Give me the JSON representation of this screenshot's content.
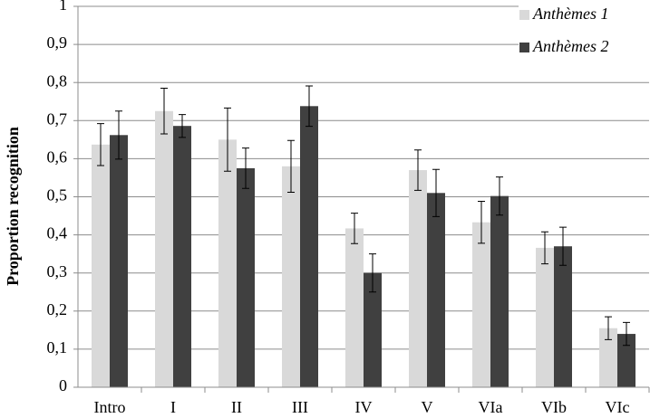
{
  "chart_data": {
    "type": "bar",
    "y_label": "Proportion recognition",
    "categories": [
      "Intro",
      "I",
      "II",
      "III",
      "IV",
      "V",
      "VIa",
      "VIb",
      "VIc"
    ],
    "series": [
      {
        "name": "Anthèmes 1",
        "color": "#d9d9d9",
        "values": [
          0.637,
          0.725,
          0.65,
          0.58,
          0.417,
          0.57,
          0.433,
          0.366,
          0.155
        ],
        "errors": [
          0.055,
          0.06,
          0.083,
          0.068,
          0.04,
          0.053,
          0.055,
          0.042,
          0.03
        ]
      },
      {
        "name": "Anthèmes 2",
        "color": "#404040",
        "values": [
          0.662,
          0.686,
          0.575,
          0.738,
          0.3,
          0.51,
          0.502,
          0.37,
          0.14
        ],
        "errors": [
          0.063,
          0.03,
          0.053,
          0.053,
          0.05,
          0.062,
          0.05,
          0.05,
          0.03
        ]
      }
    ],
    "ylim": [
      0,
      1
    ],
    "yticks": [
      0,
      {
        "value": 0.1,
        "label": "0,1"
      },
      {
        "value": 0.2,
        "label": "0,2"
      },
      {
        "value": 0.3,
        "label": "0,3"
      },
      {
        "value": 0.4,
        "label": "0,4"
      },
      {
        "value": 0.5,
        "label": "0,5"
      },
      {
        "value": 0.6,
        "label": "0,6"
      },
      {
        "value": 0.7,
        "label": "0,7"
      },
      {
        "value": 0.8,
        "label": "0,8"
      },
      {
        "value": 0.9,
        "label": "0,9"
      },
      1
    ],
    "grid": true,
    "legend": "top-right"
  }
}
